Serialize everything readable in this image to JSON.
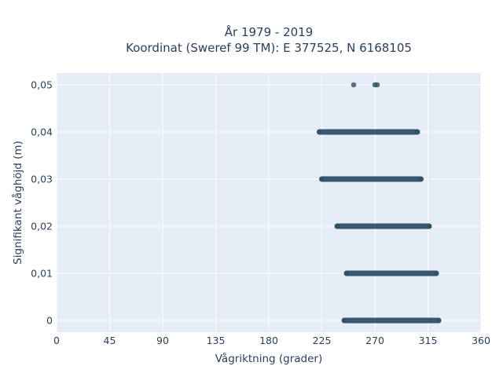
{
  "chart_data": {
    "type": "scatter",
    "title": [
      "År 1979 - 2019",
      "Koordinat (Sweref 99 TM): E 377525, N 6168105"
    ],
    "xlabel": "Vågriktning (grader)",
    "ylabel": "Signifikant våghöjd (m)",
    "xlim": [
      0,
      360
    ],
    "ylim": [
      -0.0025,
      0.0525
    ],
    "xticks": [
      0,
      45,
      90,
      135,
      180,
      225,
      270,
      315,
      360
    ],
    "xtick_labels": [
      "0",
      "45",
      "90",
      "135",
      "180",
      "225",
      "270",
      "315",
      "360"
    ],
    "yticks": [
      0,
      0.01,
      0.02,
      0.03,
      0.04,
      0.05
    ],
    "ytick_labels": [
      "0",
      "0,01",
      "0,02",
      "0,03",
      "0,04",
      "0,05"
    ],
    "grid": true,
    "marker_color": "#2f5068",
    "bands": [
      {
        "y": 0.0,
        "x_min": 244,
        "x_max": 324
      },
      {
        "y": 0.01,
        "x_min": 246,
        "x_max": 322
      },
      {
        "y": 0.02,
        "x_min": 238,
        "x_max": 316
      },
      {
        "y": 0.03,
        "x_min": 225,
        "x_max": 309
      },
      {
        "y": 0.04,
        "x_min": 223,
        "x_max": 306
      }
    ],
    "points": [
      {
        "x": 252,
        "y": 0.05
      },
      {
        "x": 270,
        "y": 0.05
      },
      {
        "x": 272,
        "y": 0.05
      }
    ]
  }
}
